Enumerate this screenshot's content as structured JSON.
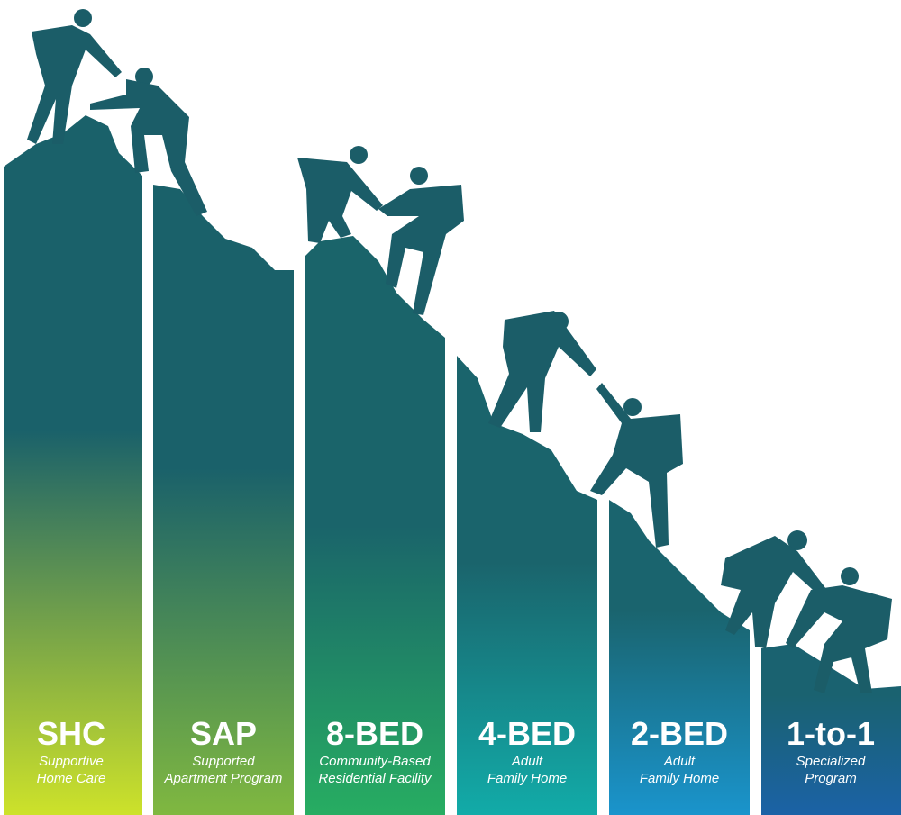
{
  "columns": [
    {
      "title": "SHC",
      "subtitle": [
        "Supportive",
        "Home Care"
      ]
    },
    {
      "title": "SAP",
      "subtitle": [
        "Supported",
        "Apartment Program"
      ]
    },
    {
      "title": "8-BED",
      "subtitle": [
        "Community-Based",
        "Residential Facility"
      ]
    },
    {
      "title": "4-BED",
      "subtitle": [
        "Adult",
        "Family Home"
      ]
    },
    {
      "title": "2-BED",
      "subtitle": [
        "Adult",
        "Family Home"
      ]
    },
    {
      "title": "1-to-1",
      "subtitle": [
        "Specialized",
        "Program"
      ]
    }
  ]
}
